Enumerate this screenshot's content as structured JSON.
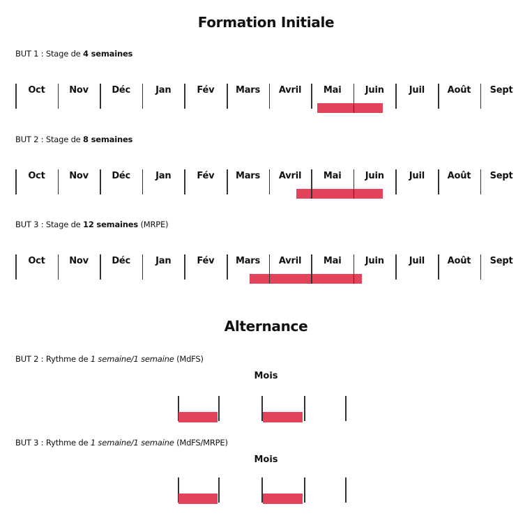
{
  "title_initial": "Formation Initiale",
  "title_alternance": "Alternance",
  "months": [
    "Oct",
    "Nov",
    "Déc",
    "Jan",
    "Fév",
    "Mars",
    "Avril",
    "Mai",
    "Juin",
    "Juil",
    "Août",
    "Sept"
  ],
  "bar_color": "#e3435a",
  "initial": [
    {
      "prefix": "BUT 1 : Stage de ",
      "bold": "4 semaines",
      "suffix": "",
      "bar_start_month": 7.15,
      "bar_end_month": 8.7
    },
    {
      "prefix": "BUT 2 : Stage de ",
      "bold": "8 semaines",
      "suffix": "",
      "bar_start_month": 6.65,
      "bar_end_month": 8.7
    },
    {
      "prefix": "BUT 3 : Stage de ",
      "bold": "12 semaines",
      "suffix": " (MRPE)",
      "bar_start_month": 5.55,
      "bar_end_month": 8.2
    }
  ],
  "alternance": [
    {
      "prefix": "BUT 2 : Rythme de ",
      "italic": "1 semaine/1 semaine",
      "suffix": " (MdFS)",
      "mois_label": "Mois"
    },
    {
      "prefix": "BUT 3 : Rythme de ",
      "italic": "1 semaine/1 semaine",
      "suffix": " (MdFS/MRPE)",
      "mois_label": "Mois"
    }
  ]
}
